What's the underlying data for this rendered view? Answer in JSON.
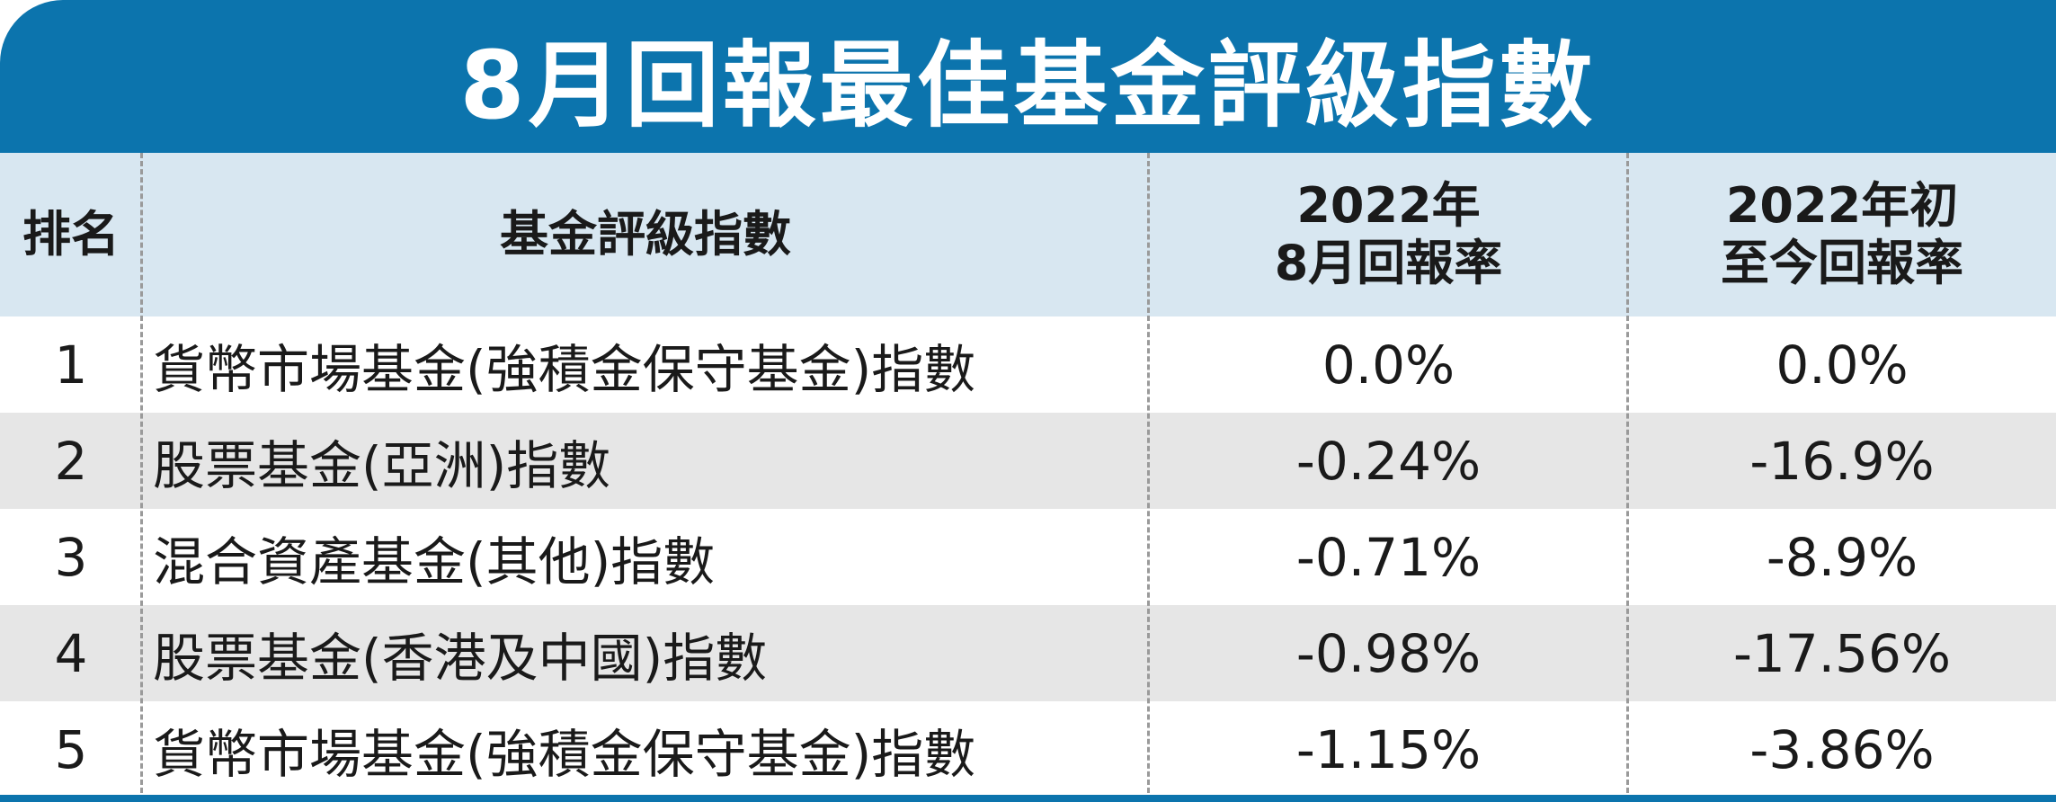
{
  "title": "8月回報最佳基金評級指數",
  "header": {
    "rank": "排名",
    "index": "基金評級指數",
    "aug_line1": "2022年",
    "aug_line2": "8月回報率",
    "ytd_line1": "2022年初",
    "ytd_line2": "至今回報率"
  },
  "rows": [
    {
      "rank": "1",
      "name": "貨幣市場基金(強積金保守基金)指數",
      "aug": "0.0%",
      "ytd": "0.0%"
    },
    {
      "rank": "2",
      "name": "股票基金(亞洲)指數",
      "aug": "-0.24%",
      "ytd": "-16.9%"
    },
    {
      "rank": "3",
      "name": "混合資產基金(其他)指數",
      "aug": "-0.71%",
      "ytd": "-8.9%"
    },
    {
      "rank": "4",
      "name": "股票基金(香港及中國)指數",
      "aug": "-0.98%",
      "ytd": "-17.56%"
    },
    {
      "rank": "5",
      "name": "貨幣市場基金(強積金保守基金)指數",
      "aug": "-1.15%",
      "ytd": "-3.86%"
    }
  ],
  "colors": {
    "title_bg": "#0c74ad",
    "header_bg": "#d8e7f1",
    "alt_row_bg": "#e6e6e6"
  }
}
